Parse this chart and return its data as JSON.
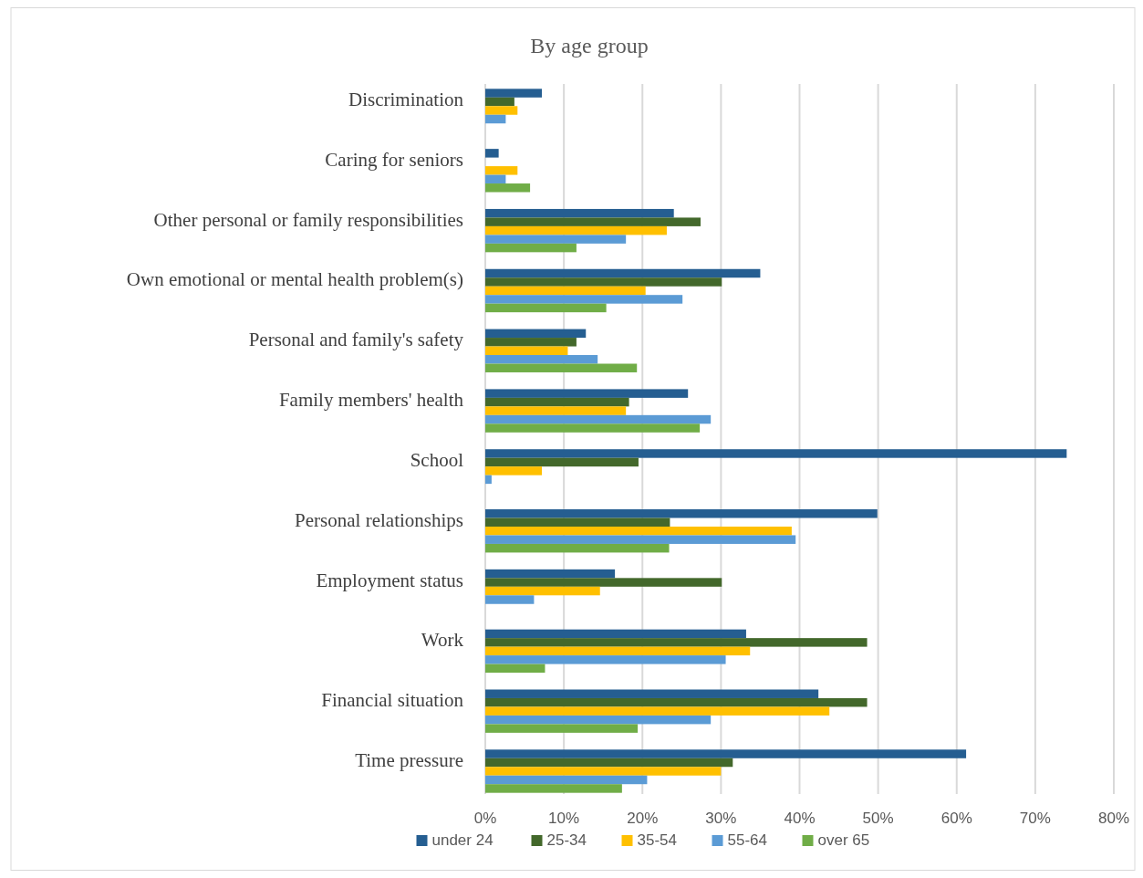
{
  "chart_data": {
    "type": "bar",
    "orientation": "horizontal",
    "title": "By age group",
    "categories": [
      "Discrimination",
      "Caring for seniors",
      "Other personal or family responsibilities",
      "Own emotional or mental health problem(s)",
      "Personal and family's safety",
      "Family members' health",
      "School",
      "Personal relationships",
      "Employment status",
      "Work",
      "Financial situation",
      "Time pressure"
    ],
    "series": [
      {
        "name": "under 24",
        "color": "#255e91",
        "values": [
          7.2,
          1.7,
          24.0,
          35.0,
          12.8,
          25.8,
          74.0,
          49.9,
          16.5,
          33.2,
          42.4,
          61.2
        ]
      },
      {
        "name": "25-34",
        "color": "#43682b",
        "values": [
          3.7,
          null,
          27.4,
          30.1,
          11.6,
          18.3,
          19.5,
          23.5,
          30.1,
          48.6,
          48.6,
          31.5
        ]
      },
      {
        "name": "35-54",
        "color": "#ffc000",
        "values": [
          4.1,
          4.1,
          23.1,
          20.4,
          10.5,
          17.9,
          7.2,
          39.0,
          14.6,
          33.7,
          43.8,
          30.0
        ]
      },
      {
        "name": "55-64",
        "color": "#5b9bd5",
        "values": [
          2.6,
          2.6,
          17.9,
          25.1,
          14.3,
          28.7,
          0.8,
          39.5,
          6.2,
          30.6,
          28.7,
          20.6
        ]
      },
      {
        "name": "over 65",
        "color": "#70ad47",
        "values": [
          null,
          5.7,
          11.6,
          15.4,
          19.3,
          27.3,
          null,
          23.4,
          null,
          7.6,
          19.4,
          17.4
        ]
      }
    ],
    "xlim": [
      0,
      80
    ],
    "xticks": [
      {
        "value": 0,
        "label": "0%"
      },
      {
        "value": 10,
        "label": "10%"
      },
      {
        "value": 20,
        "label": "20%"
      },
      {
        "value": 30,
        "label": "30%"
      },
      {
        "value": 40,
        "label": "40%"
      },
      {
        "value": 50,
        "label": "50%"
      },
      {
        "value": 60,
        "label": "60%"
      },
      {
        "value": 70,
        "label": "70%"
      },
      {
        "value": 80,
        "label": "80%"
      }
    ],
    "grid": "x",
    "legend": "bottom"
  }
}
